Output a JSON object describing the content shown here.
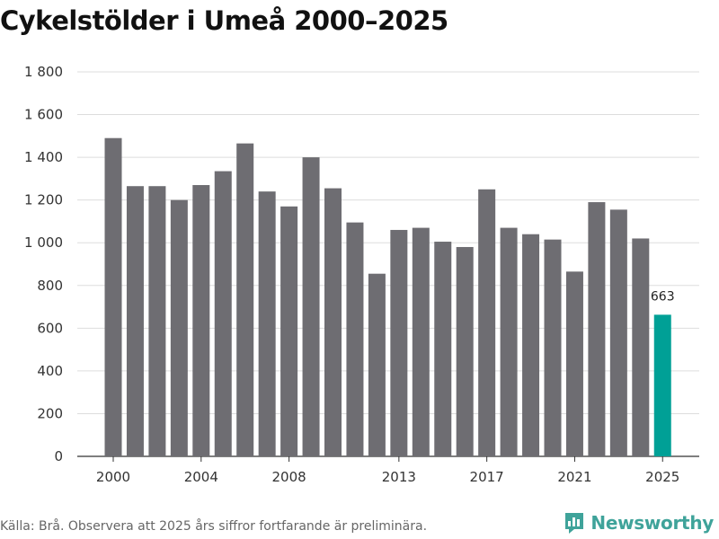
{
  "chart_data": {
    "type": "bar",
    "title": "Cykelstölder i Umeå 2000–2025",
    "xlabel": "",
    "ylabel": "",
    "ylim": [
      0,
      1800
    ],
    "yticks": [
      0,
      200,
      400,
      600,
      800,
      1000,
      1200,
      1400,
      1600,
      1800
    ],
    "ytick_labels": [
      "0",
      "200",
      "400",
      "600",
      "800",
      "1 000",
      "1 200",
      "1 400",
      "1 600",
      "1 800"
    ],
    "categories": [
      2000,
      2001,
      2002,
      2003,
      2004,
      2005,
      2006,
      2007,
      2008,
      2009,
      2010,
      2011,
      2012,
      2013,
      2014,
      2015,
      2016,
      2017,
      2018,
      2019,
      2020,
      2021,
      2022,
      2023,
      2024,
      2025
    ],
    "xtick_labels": [
      {
        "year": 2000,
        "label": "2000"
      },
      {
        "year": 2004,
        "label": "2004"
      },
      {
        "year": 2008,
        "label": "2008"
      },
      {
        "year": 2013,
        "label": "2013"
      },
      {
        "year": 2017,
        "label": "2017"
      },
      {
        "year": 2021,
        "label": "2021"
      },
      {
        "year": 2025,
        "label": "2025"
      }
    ],
    "values": [
      1490,
      1265,
      1265,
      1200,
      1270,
      1335,
      1465,
      1240,
      1170,
      1400,
      1255,
      1095,
      855,
      1060,
      1070,
      1005,
      980,
      1250,
      1070,
      1040,
      1015,
      865,
      1190,
      1155,
      1020,
      663
    ],
    "highlight_index": 25,
    "annotations": [
      {
        "year": 2025,
        "label": "663"
      }
    ],
    "bar_color": "#6e6d72",
    "highlight_color": "#00a096",
    "grid": true
  },
  "source_text": "Källa: Brå. Observera att 2025 års siffror fortfarande är preliminära.",
  "brand": {
    "name": "Newsworthy",
    "color": "#3fa39a"
  }
}
